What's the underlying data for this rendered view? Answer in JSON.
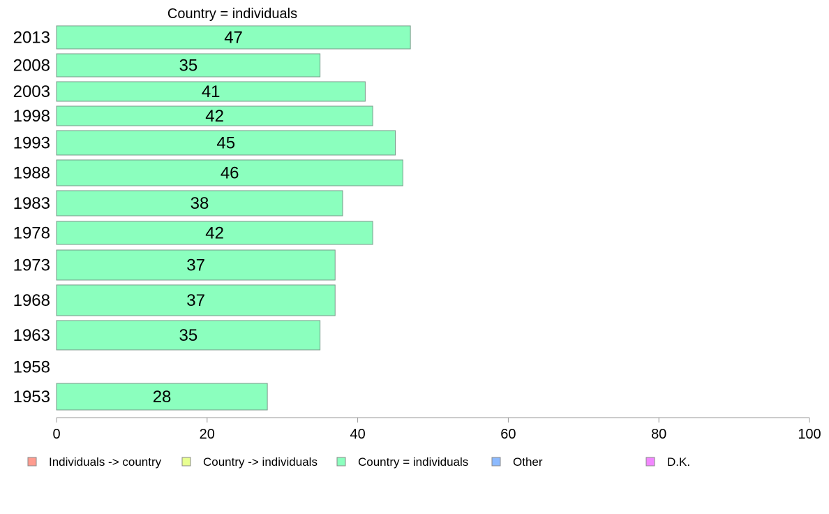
{
  "chart_data": {
    "type": "bar",
    "orientation": "horizontal",
    "title": "Country = individuals",
    "categories": [
      "2013",
      "2008",
      "2003",
      "1998",
      "1993",
      "1988",
      "1983",
      "1978",
      "1973",
      "1968",
      "1963",
      "1958",
      "1953"
    ],
    "series": [
      {
        "name": "Country = individuals",
        "values": [
          47,
          35,
          41,
          42,
          45,
          46,
          38,
          42,
          37,
          37,
          35,
          null,
          28
        ],
        "data_labels": [
          "47",
          "35",
          "41",
          "42",
          "45",
          "46",
          "38",
          "42",
          "37",
          "37",
          "35",
          "",
          "28"
        ],
        "color": "#8bffbe"
      }
    ],
    "xlim": [
      0,
      100
    ],
    "xticks": [
      0,
      20,
      40,
      60,
      80,
      100
    ],
    "xtick_labels": [
      "0",
      "20",
      "40",
      "60",
      "80",
      "100"
    ],
    "grid": false,
    "legend_placement": "bottom",
    "legend": [
      {
        "label": "Individuals -> country",
        "color": "#ff9c8f"
      },
      {
        "label": "Country -> individuals",
        "color": "#e8ff91"
      },
      {
        "label": "Country = individuals",
        "color": "#8bffbe"
      },
      {
        "label": "Other",
        "color": "#8cbaff"
      },
      {
        "label": "D.K.",
        "color": "#f287ff"
      }
    ]
  }
}
